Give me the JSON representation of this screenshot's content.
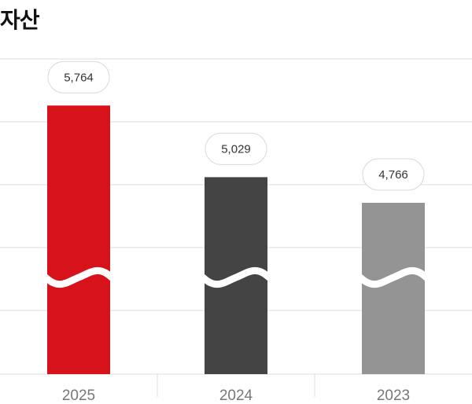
{
  "chart_data": {
    "type": "bar",
    "title": "자산",
    "categories": [
      "2025",
      "2024",
      "2023"
    ],
    "values": [
      5764,
      5029,
      4766
    ],
    "value_labels": [
      "5,764",
      "5,029",
      "4,766"
    ],
    "axis_break": true,
    "grid": true,
    "colors": [
      "#d7121a",
      "#444444",
      "#949494"
    ],
    "grid_color": "#dcdcdc",
    "label_bubble_border": "#d9d9d9"
  }
}
